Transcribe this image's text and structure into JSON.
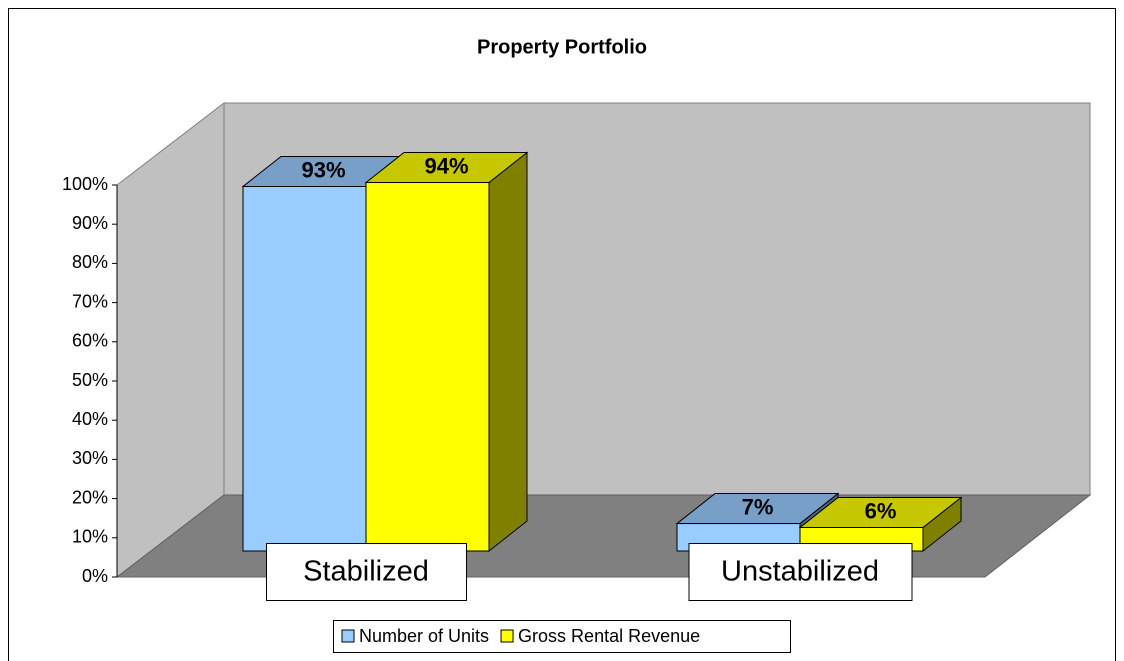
{
  "chart_data": {
    "type": "bar3d",
    "title": "Property Portfolio",
    "categories": [
      "Stabilized",
      "Unstabilized"
    ],
    "series": [
      {
        "name": "Number of Units",
        "color": "#99ccff",
        "values": [
          93,
          7
        ],
        "value_labels": [
          "93%",
          "7%"
        ]
      },
      {
        "name": "Gross Rental Revenue",
        "color": "#ffff00",
        "values": [
          94,
          6
        ],
        "value_labels": [
          "94%",
          "6%"
        ]
      }
    ],
    "ylim": [
      0,
      100
    ],
    "yticks": [
      {
        "value": 0,
        "label": "0%"
      },
      {
        "value": 10,
        "label": "10%"
      },
      {
        "value": 20,
        "label": "20%"
      },
      {
        "value": 30,
        "label": "30%"
      },
      {
        "value": 40,
        "label": "40%"
      },
      {
        "value": 50,
        "label": "50%"
      },
      {
        "value": 60,
        "label": "60%"
      },
      {
        "value": 70,
        "label": "70%"
      },
      {
        "value": 80,
        "label": "80%"
      },
      {
        "value": 90,
        "label": "90%"
      },
      {
        "value": 100,
        "label": "100%"
      }
    ],
    "legend": "bottom"
  }
}
